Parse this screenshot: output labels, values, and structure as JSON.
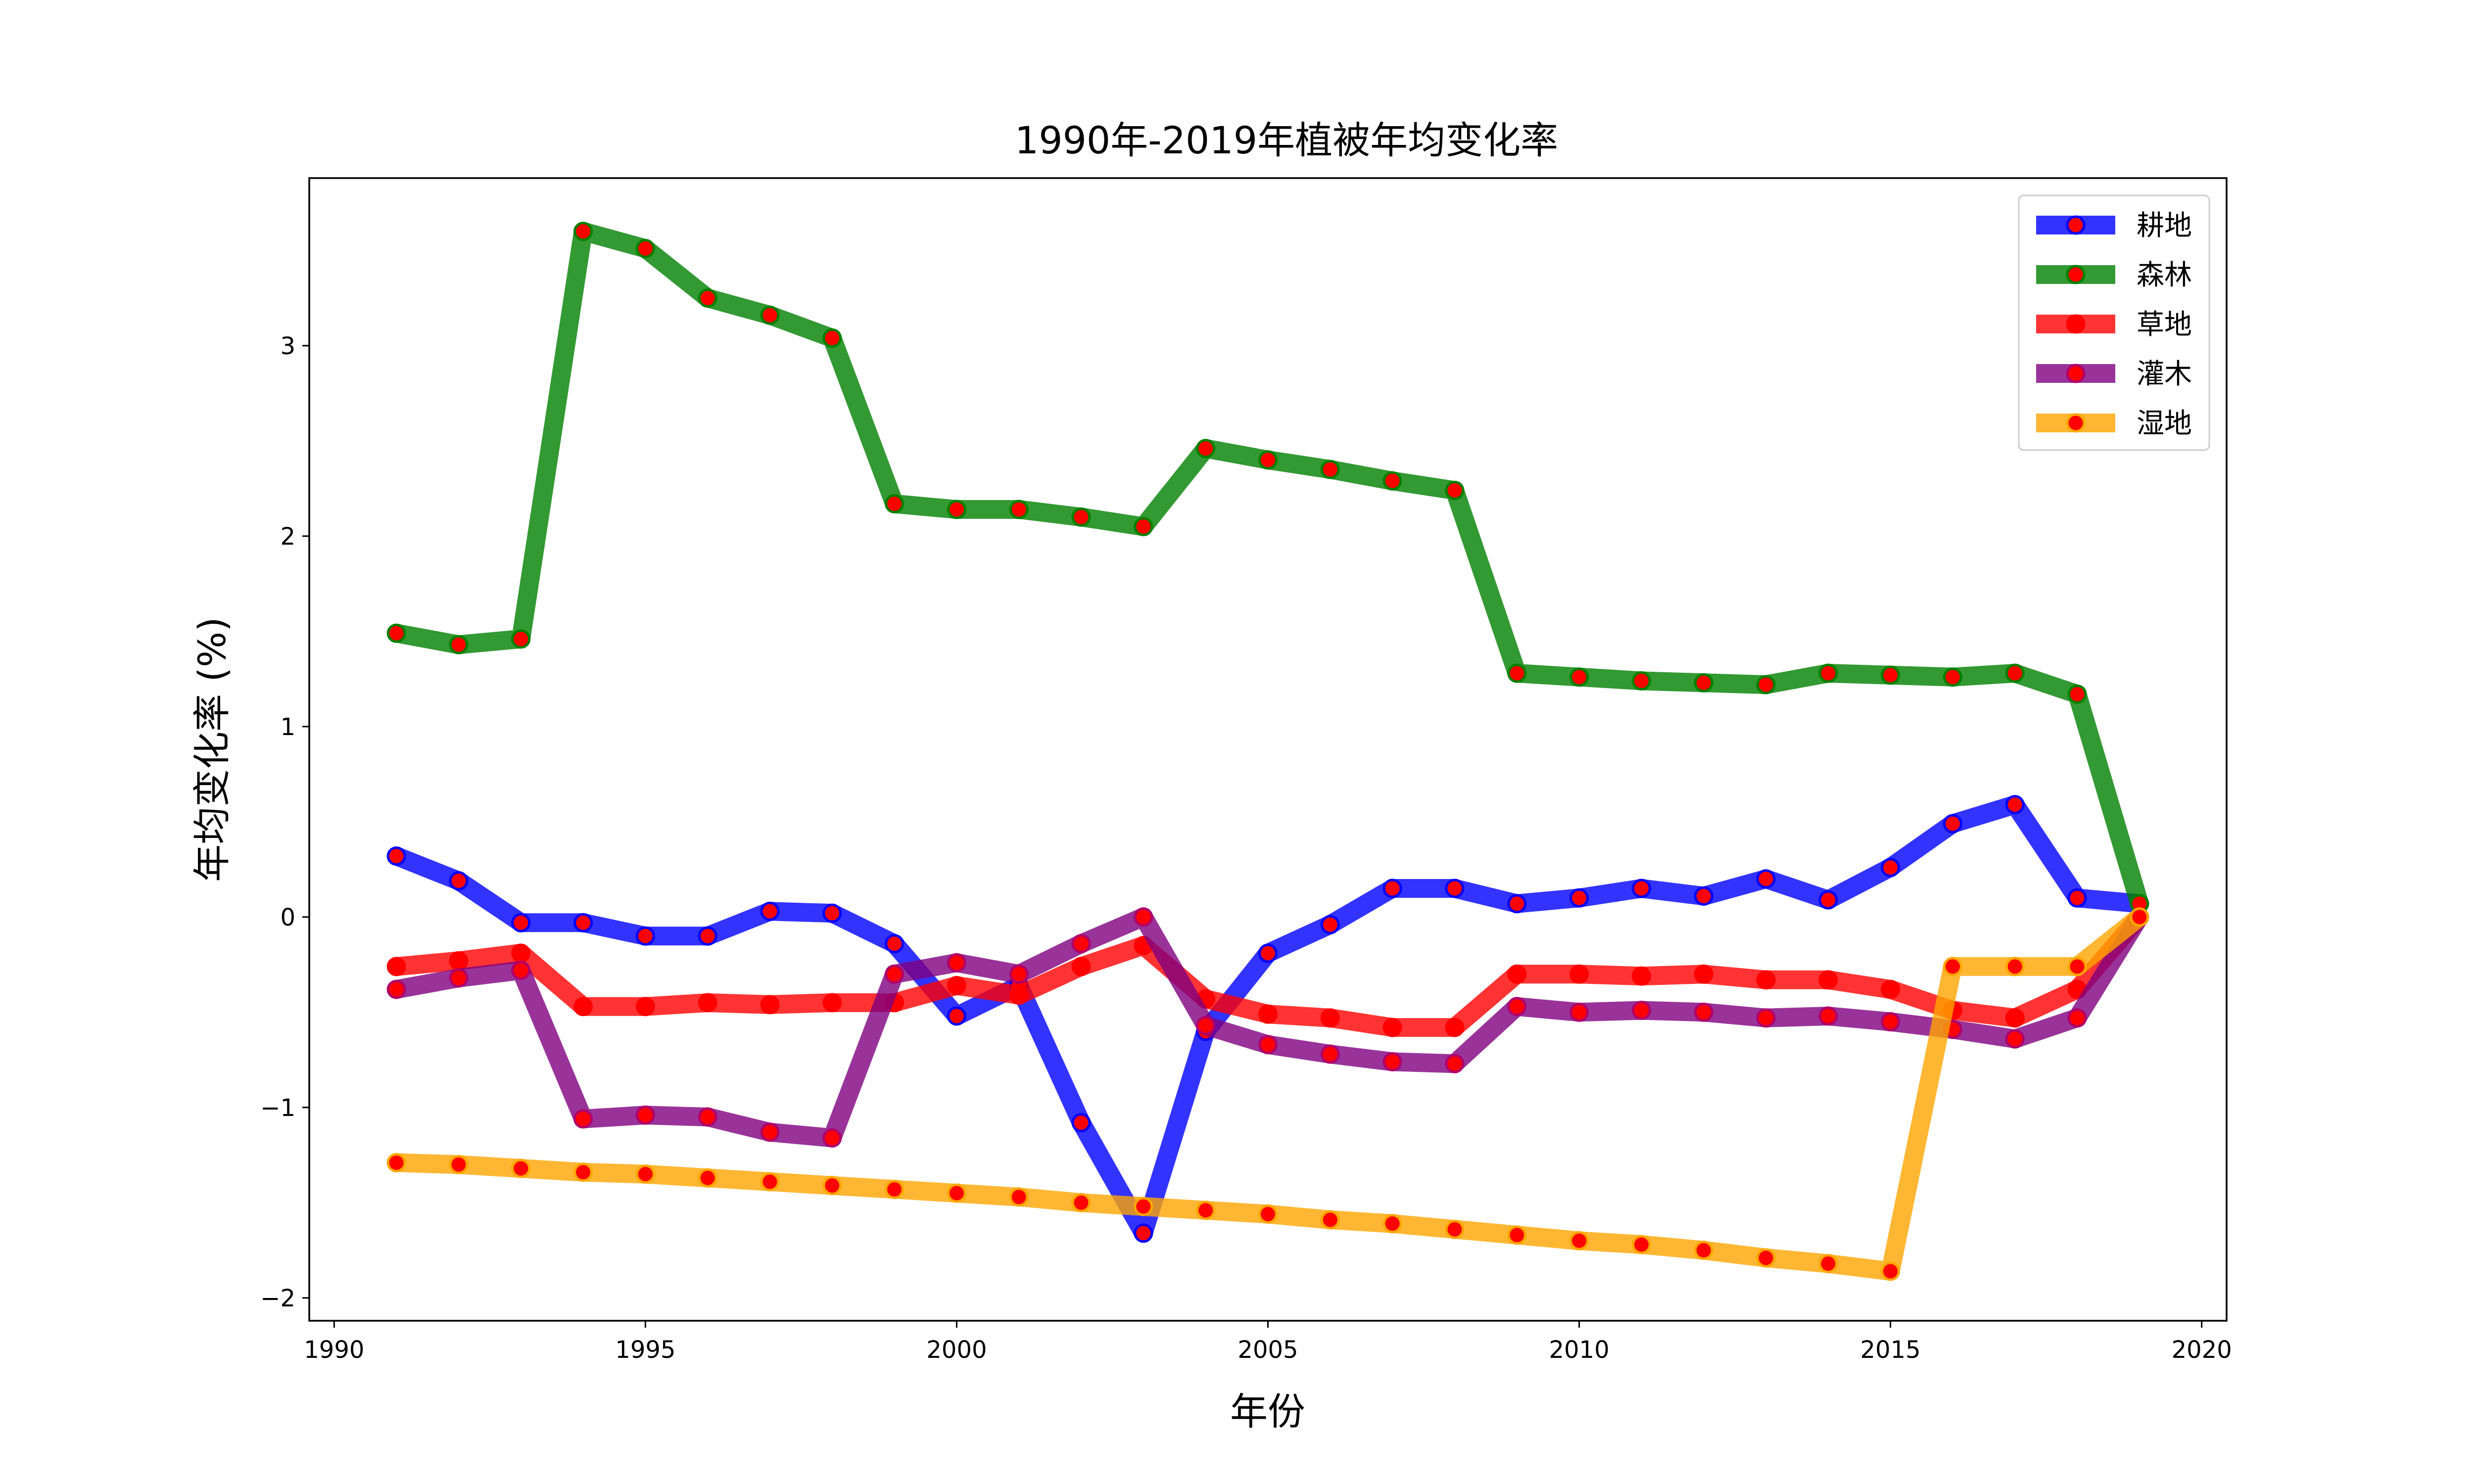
{
  "chart_data": {
    "type": "line",
    "title": "1990年-2019年植被年均变化率",
    "xlabel": "年份",
    "ylabel": "年均变化率 (%)",
    "xlim": [
      1989.6,
      2020.4
    ],
    "ylim": [
      -2.12,
      3.88
    ],
    "x_ticks": [
      1990,
      1995,
      2000,
      2005,
      2010,
      2015,
      2020
    ],
    "y_ticks": [
      -2,
      -1,
      0,
      1,
      2,
      3
    ],
    "y_tick_labels": [
      "−2",
      "−1",
      "0",
      "1",
      "2",
      "3"
    ],
    "legend_position": "top-right",
    "grid": false,
    "marker_color": "#ff0000",
    "x": [
      1991,
      1992,
      1993,
      1994,
      1995,
      1996,
      1997,
      1998,
      1999,
      2000,
      2001,
      2002,
      2003,
      2004,
      2005,
      2006,
      2007,
      2008,
      2009,
      2010,
      2011,
      2012,
      2013,
      2014,
      2015,
      2016,
      2017,
      2018,
      2019
    ],
    "series": [
      {
        "name": "耕地",
        "color": "#0000ff",
        "edge": "#0000ff",
        "values": [
          0.32,
          0.19,
          -0.03,
          -0.03,
          -0.1,
          -0.1,
          0.03,
          0.02,
          -0.14,
          -0.52,
          -0.36,
          -1.08,
          -1.66,
          -0.6,
          -0.19,
          -0.04,
          0.15,
          0.15,
          0.07,
          0.1,
          0.15,
          0.11,
          0.2,
          0.09,
          0.26,
          0.49,
          0.59,
          0.1,
          0.07
        ]
      },
      {
        "name": "森林",
        "color": "#008000",
        "edge": "#008000",
        "values": [
          1.49,
          1.43,
          1.46,
          3.6,
          3.51,
          3.25,
          3.16,
          3.04,
          2.17,
          2.14,
          2.14,
          2.1,
          2.05,
          2.46,
          2.4,
          2.35,
          2.29,
          2.24,
          1.28,
          1.26,
          1.24,
          1.23,
          1.22,
          1.28,
          1.27,
          1.26,
          1.28,
          1.17,
          0.07
        ]
      },
      {
        "name": "草地",
        "color": "#ff0000",
        "edge": "#ff0000",
        "values": [
          -0.26,
          -0.23,
          -0.19,
          -0.47,
          -0.47,
          -0.45,
          -0.46,
          -0.45,
          -0.45,
          -0.36,
          -0.41,
          -0.26,
          -0.15,
          -0.43,
          -0.51,
          -0.53,
          -0.58,
          -0.58,
          -0.3,
          -0.3,
          -0.31,
          -0.3,
          -0.33,
          -0.33,
          -0.38,
          -0.49,
          -0.53,
          -0.38,
          0.0
        ]
      },
      {
        "name": "灌木",
        "color": "#800080",
        "edge": "#b0006a",
        "values": [
          -0.38,
          -0.32,
          -0.28,
          -1.06,
          -1.04,
          -1.05,
          -1.13,
          -1.16,
          -0.3,
          -0.24,
          -0.3,
          -0.14,
          0.0,
          -0.57,
          -0.67,
          -0.72,
          -0.76,
          -0.77,
          -0.47,
          -0.5,
          -0.49,
          -0.5,
          -0.53,
          -0.52,
          -0.55,
          -0.59,
          -0.64,
          -0.53,
          0.0
        ]
      },
      {
        "name": "湿地",
        "color": "#ffa500",
        "edge": "#ffa500",
        "values": [
          -1.29,
          -1.3,
          -1.32,
          -1.34,
          -1.35,
          -1.37,
          -1.39,
          -1.41,
          -1.43,
          -1.45,
          -1.47,
          -1.5,
          -1.52,
          -1.54,
          -1.56,
          -1.59,
          -1.61,
          -1.64,
          -1.67,
          -1.7,
          -1.72,
          -1.75,
          -1.79,
          -1.82,
          -1.86,
          -0.26,
          -0.26,
          -0.26,
          0.0
        ]
      }
    ]
  }
}
